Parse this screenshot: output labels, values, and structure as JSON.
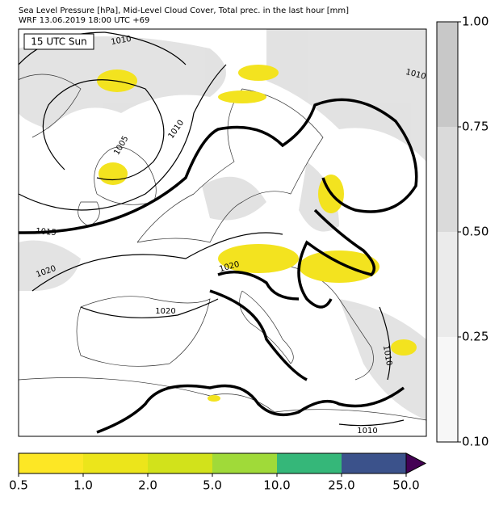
{
  "header": {
    "title_line_1": "Sea Level Pressure [hPa], Mid-Level Cloud Cover, Total prec. in the last hour [mm]",
    "title_line_2": "WRF 13.06.2019 18:00 UTC +69"
  },
  "map": {
    "time_box": "15 UTC Sun",
    "contour_labels": [
      "1010",
      "1010",
      "1005",
      "1010",
      "1015",
      "1020",
      "1020",
      "1020",
      "1010",
      "1010"
    ]
  },
  "cloud_colorbar": {
    "ticks": [
      "1.00",
      "0.75",
      "0.50",
      "0.25",
      "0.10"
    ],
    "colors": [
      "#c8c8c8",
      "#dadada",
      "#ebebeb",
      "#f7f7f7"
    ]
  },
  "precip_colorbar": {
    "ticks": [
      "0.5",
      "1.0",
      "2.0",
      "5.0",
      "10.0",
      "25.0",
      "50.0"
    ],
    "colors": [
      "#fde725",
      "#ece51b",
      "#d2e21b",
      "#a0da39",
      "#35b779",
      "#3b528b"
    ],
    "extend_color": "#440154"
  }
}
